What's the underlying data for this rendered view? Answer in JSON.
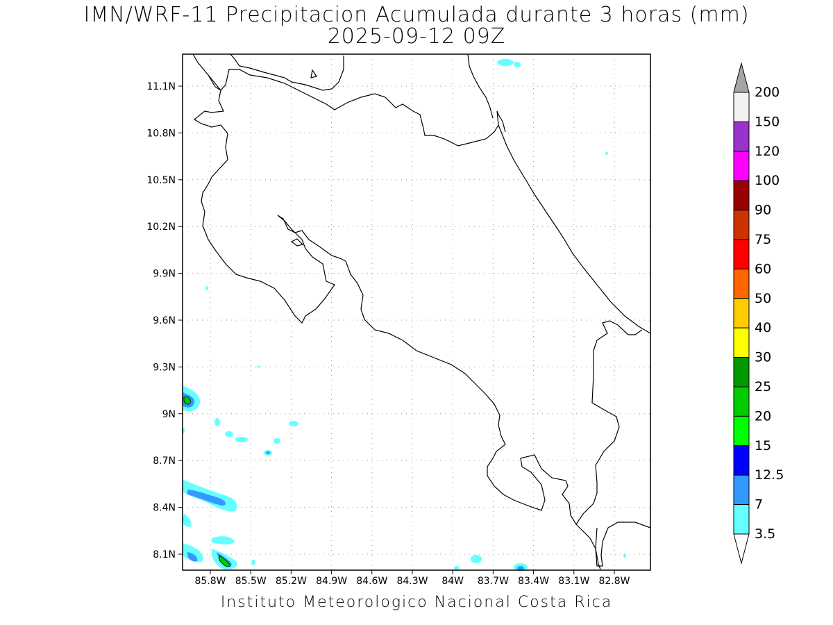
{
  "title_line1": "IMN/WRF-11 Precipitacion Acumulada durante 3 horas (mm)",
  "title_line2": "2025-09-12 09Z",
  "footer": "Instituto Meteorologico Nacional Costa Rica",
  "lat_labels": [
    "11.1N",
    "10.8N",
    "10.5N",
    "10.2N",
    "9.9N",
    "9.6N",
    "9.3N",
    "9N",
    "8.7N",
    "8.4N",
    "8.1N"
  ],
  "lon_labels": [
    "85.8W",
    "85.5W",
    "85.2W",
    "84.9W",
    "84.6W",
    "84.3W",
    "84W",
    "83.7W",
    "83.4W",
    "83.1W",
    "82.8W"
  ],
  "colorbar": {
    "labels": [
      "200",
      "150",
      "120",
      "100",
      "90",
      "75",
      "60",
      "50",
      "40",
      "30",
      "25",
      "20",
      "15",
      "12.5",
      "7",
      "3.5"
    ],
    "colors": [
      "#f2f2f2",
      "#9933cc",
      "#ff00ff",
      "#990000",
      "#cc3300",
      "#ff0000",
      "#ff6600",
      "#ffcc00",
      "#ffff00",
      "#009900",
      "#00cc00",
      "#00ff00",
      "#0000ff",
      "#3399ff",
      "#66ffff"
    ],
    "top_arrow_color": "#a6a6a6",
    "bottom_arrow_color": "#ffffff"
  }
}
